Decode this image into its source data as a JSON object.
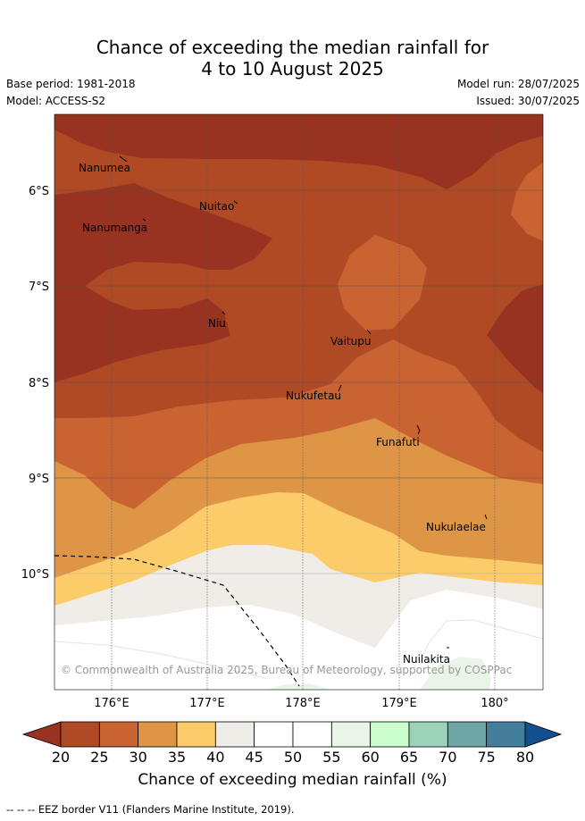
{
  "header": {
    "title_line1": "Chance of exceeding the median rainfall for",
    "title_line2": "4 to 10 August 2025",
    "base_period": "Base period: 1981-2018",
    "model": "Model: ACCESS-S2",
    "model_run": "Model run: 28/07/2025",
    "issued": "Issued: 30/07/2025"
  },
  "map": {
    "longitude_ticks": [
      "176°E",
      "177°E",
      "178°E",
      "179°E",
      "180°"
    ],
    "latitude_ticks": [
      "6°S",
      "7°S",
      "8°S",
      "9°S",
      "10°S"
    ],
    "places": [
      "Nanumea",
      "Nuitao",
      "Nanumanga",
      "Niu",
      "Vaitupu",
      "Nukufetau",
      "Funafuti",
      "Nukulaelae",
      "Nuilakita"
    ],
    "copyright": "© Commonwealth of Australia 2025, Bureau of Meteorology, supported by COSPPac"
  },
  "colorbar": {
    "ticks": [
      "20",
      "25",
      "30",
      "35",
      "40",
      "45",
      "50",
      "55",
      "60",
      "65",
      "70",
      "75",
      "80"
    ],
    "colors": [
      "#973320",
      "#b04a25",
      "#c96332",
      "#df9546",
      "#fdcc6a",
      "#f0ede8",
      "#ffffff",
      "#ffffff",
      "#e9f5e7",
      "#ccfdcc",
      "#9cd1ba",
      "#6ea5a5",
      "#437f9b",
      "#134f8c"
    ],
    "label": "Chance of exceeding median rainfall (%)"
  },
  "footer": {
    "eez_note": "--  --  -- EEZ border V11 (Flanders Marine Institute, 2019)."
  }
}
